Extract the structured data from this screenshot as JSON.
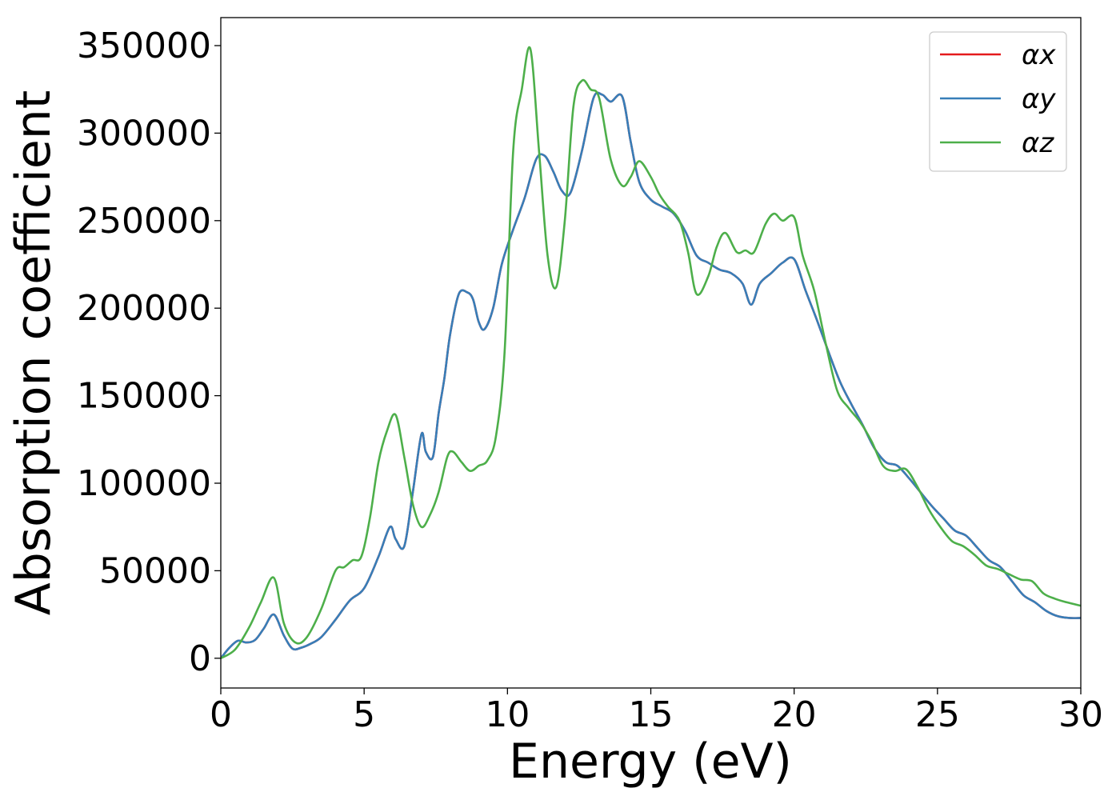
{
  "chart_data": {
    "type": "line",
    "title": "",
    "xlabel": "Energy (eV)",
    "ylabel": "Absorption coefficient",
    "xlim": [
      0,
      30
    ],
    "ylim": [
      -17000,
      366000
    ],
    "xticks": [
      0,
      5,
      10,
      15,
      20,
      25,
      30
    ],
    "yticks": [
      0,
      50000,
      100000,
      150000,
      200000,
      250000,
      300000,
      350000
    ],
    "grid": false,
    "legend_position": "top-right",
    "series": [
      {
        "name": "αx",
        "color": "#e41a1c",
        "x": [
          0,
          0.3,
          0.6,
          0.9,
          1.2,
          1.5,
          1.85,
          2.2,
          2.5,
          2.8,
          3.1,
          3.5,
          4.0,
          4.5,
          5.0,
          5.5,
          5.9,
          6.1,
          6.4,
          6.7,
          7.0,
          7.15,
          7.4,
          7.6,
          7.8,
          8.0,
          8.3,
          8.6,
          8.8,
          9.0,
          9.2,
          9.5,
          9.8,
          10.2,
          10.6,
          11.0,
          11.3,
          11.6,
          11.9,
          12.2,
          12.6,
          13.0,
          13.3,
          13.6,
          14.0,
          14.3,
          14.6,
          15.0,
          15.4,
          15.8,
          16.2,
          16.6,
          17.0,
          17.4,
          17.8,
          18.2,
          18.5,
          18.8,
          19.2,
          19.6,
          20.0,
          20.4,
          20.8,
          21.2,
          21.6,
          22.0,
          22.4,
          22.8,
          23.2,
          23.6,
          24.0,
          24.4,
          24.8,
          25.2,
          25.6,
          26.0,
          26.4,
          26.8,
          27.2,
          27.6,
          28.0,
          28.4,
          28.8,
          29.2,
          29.6,
          30.0
        ],
        "values": [
          0,
          6000,
          10000,
          9000,
          10500,
          17000,
          25000,
          13000,
          5500,
          6000,
          8000,
          12000,
          22000,
          33000,
          40000,
          58000,
          75000,
          68000,
          64000,
          95000,
          128000,
          118000,
          115000,
          140000,
          160000,
          185000,
          208000,
          209000,
          205000,
          192000,
          188000,
          200000,
          225000,
          245000,
          263000,
          285000,
          287000,
          278000,
          267000,
          266000,
          290000,
          320000,
          322000,
          318000,
          321000,
          295000,
          272000,
          262000,
          258000,
          254000,
          244000,
          230000,
          226000,
          222000,
          220000,
          214000,
          202000,
          214000,
          220000,
          226000,
          228000,
          210000,
          193000,
          175000,
          158000,
          145000,
          133000,
          120000,
          112000,
          110000,
          103000,
          95000,
          87000,
          80000,
          73000,
          70000,
          63000,
          56000,
          52000,
          44000,
          36000,
          32000,
          27000,
          24000,
          23000,
          23000
        ]
      },
      {
        "name": "αy",
        "color": "#377eb8",
        "x": [
          0,
          0.3,
          0.6,
          0.9,
          1.2,
          1.5,
          1.85,
          2.2,
          2.5,
          2.8,
          3.1,
          3.5,
          4.0,
          4.5,
          5.0,
          5.5,
          5.9,
          6.1,
          6.4,
          6.7,
          7.0,
          7.15,
          7.4,
          7.6,
          7.8,
          8.0,
          8.3,
          8.6,
          8.8,
          9.0,
          9.2,
          9.5,
          9.8,
          10.2,
          10.6,
          11.0,
          11.3,
          11.6,
          11.9,
          12.2,
          12.6,
          13.0,
          13.3,
          13.6,
          14.0,
          14.3,
          14.6,
          15.0,
          15.4,
          15.8,
          16.2,
          16.6,
          17.0,
          17.4,
          17.8,
          18.2,
          18.5,
          18.8,
          19.2,
          19.6,
          20.0,
          20.4,
          20.8,
          21.2,
          21.6,
          22.0,
          22.4,
          22.8,
          23.2,
          23.6,
          24.0,
          24.4,
          24.8,
          25.2,
          25.6,
          26.0,
          26.4,
          26.8,
          27.2,
          27.6,
          28.0,
          28.4,
          28.8,
          29.2,
          29.6,
          30.0
        ],
        "values": [
          0,
          6000,
          10000,
          9000,
          10500,
          17000,
          25000,
          13000,
          5500,
          6000,
          8000,
          12000,
          22000,
          33000,
          40000,
          58000,
          75000,
          68000,
          64000,
          95000,
          128000,
          118000,
          115000,
          140000,
          160000,
          185000,
          208000,
          209000,
          205000,
          192000,
          188000,
          200000,
          225000,
          245000,
          263000,
          285000,
          287000,
          278000,
          267000,
          266000,
          290000,
          320000,
          322000,
          318000,
          321000,
          295000,
          272000,
          262000,
          258000,
          254000,
          244000,
          230000,
          226000,
          222000,
          220000,
          214000,
          202000,
          214000,
          220000,
          226000,
          228000,
          210000,
          193000,
          175000,
          158000,
          145000,
          133000,
          120000,
          112000,
          110000,
          103000,
          95000,
          87000,
          80000,
          73000,
          70000,
          63000,
          56000,
          52000,
          44000,
          36000,
          32000,
          27000,
          24000,
          23000,
          23000
        ]
      },
      {
        "name": "αz",
        "color": "#4daf4a",
        "x": [
          0,
          0.5,
          1.0,
          1.4,
          1.85,
          2.2,
          2.6,
          3.0,
          3.5,
          4.0,
          4.3,
          4.6,
          4.9,
          5.2,
          5.5,
          5.8,
          6.1,
          6.4,
          6.7,
          7.0,
          7.3,
          7.6,
          7.9,
          8.1,
          8.4,
          8.7,
          9.0,
          9.3,
          9.6,
          9.9,
          10.2,
          10.5,
          10.8,
          11.1,
          11.4,
          11.7,
          12.0,
          12.3,
          12.6,
          12.9,
          13.2,
          13.6,
          14.0,
          14.3,
          14.6,
          15.0,
          15.3,
          15.6,
          16.0,
          16.3,
          16.6,
          17.0,
          17.3,
          17.6,
          18.0,
          18.3,
          18.6,
          19.0,
          19.3,
          19.6,
          20.0,
          20.3,
          20.7,
          21.1,
          21.5,
          21.9,
          22.3,
          22.7,
          23.1,
          23.5,
          23.9,
          24.3,
          24.7,
          25.1,
          25.5,
          25.9,
          26.3,
          26.7,
          27.1,
          27.5,
          27.9,
          28.3,
          28.7,
          29.1,
          29.5,
          30.0
        ],
        "values": [
          0,
          5000,
          18000,
          32000,
          46000,
          20000,
          9000,
          12000,
          28000,
          50000,
          52000,
          56000,
          58000,
          80000,
          112000,
          130000,
          139000,
          115000,
          88000,
          75000,
          82000,
          95000,
          115000,
          118000,
          112000,
          107000,
          110000,
          113000,
          127000,
          175000,
          290000,
          325000,
          348000,
          290000,
          230000,
          212000,
          250000,
          315000,
          330000,
          325000,
          320000,
          285000,
          270000,
          275000,
          284000,
          275000,
          265000,
          258000,
          250000,
          232000,
          208000,
          218000,
          235000,
          243000,
          232000,
          233000,
          232000,
          248000,
          254000,
          250000,
          252000,
          230000,
          210000,
          180000,
          153000,
          143000,
          135000,
          124000,
          110000,
          107000,
          108000,
          98000,
          85000,
          75000,
          67000,
          64000,
          59000,
          53000,
          51000,
          48000,
          45000,
          44000,
          37000,
          34000,
          32000,
          30000
        ]
      }
    ]
  }
}
